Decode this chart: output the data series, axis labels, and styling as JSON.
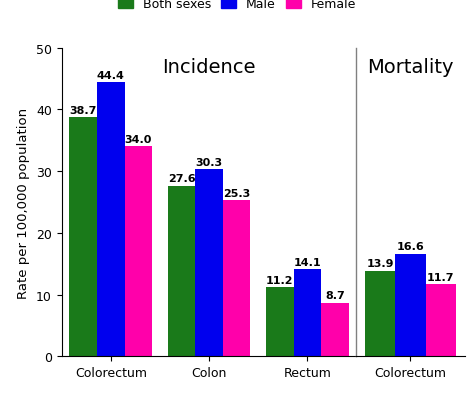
{
  "incidence": {
    "categories": [
      "Colorectum",
      "Colon",
      "Rectum"
    ],
    "both_sexes": [
      38.7,
      27.6,
      11.2
    ],
    "male": [
      44.4,
      30.3,
      14.1
    ],
    "female": [
      34.0,
      25.3,
      8.7
    ]
  },
  "mortality": {
    "categories": [
      "Colorectum"
    ],
    "both_sexes": [
      13.9
    ],
    "male": [
      16.6
    ],
    "female": [
      11.7
    ]
  },
  "colors": {
    "both_sexes": "#1a7a1a",
    "male": "#0000ee",
    "female": "#ff00aa"
  },
  "ylabel": "Rate per 100,000 population",
  "ylim": [
    0,
    50
  ],
  "yticks": [
    0,
    10,
    20,
    30,
    40,
    50
  ],
  "incidence_label": "Incidence",
  "mortality_label": "Mortality",
  "legend_labels": [
    "Both sexes",
    "Male",
    "Female"
  ],
  "bar_width": 0.28,
  "label_fontsize": 8.0,
  "axis_label_fontsize": 9.5,
  "tick_fontsize": 9,
  "section_fontsize": 14
}
